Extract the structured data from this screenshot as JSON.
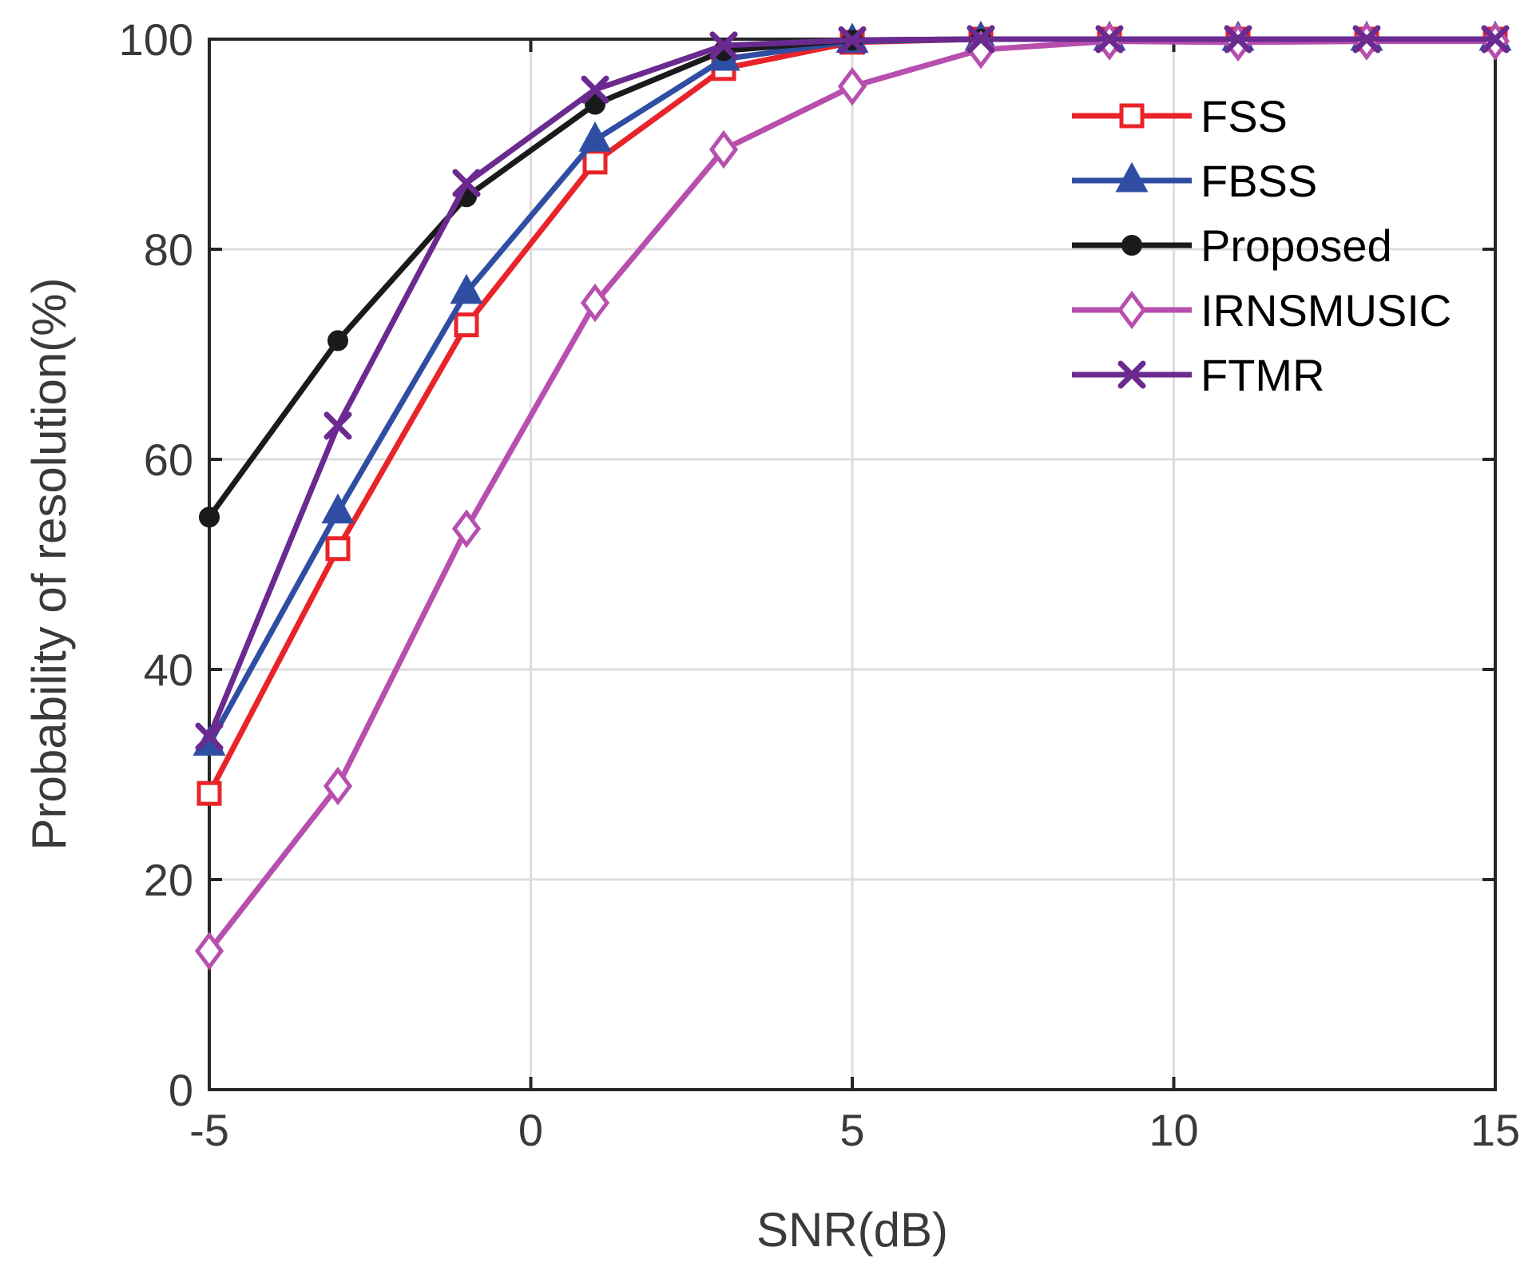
{
  "chart_data": {
    "type": "line",
    "title": "",
    "xlabel": "SNR(dB)",
    "ylabel": "Probability of resolution(%)",
    "xlim": [
      -5,
      15
    ],
    "ylim": [
      0,
      100
    ],
    "xticks": [
      -5,
      0,
      5,
      10,
      15
    ],
    "yticks": [
      0,
      20,
      40,
      60,
      80,
      100
    ],
    "grid": true,
    "legend_position": "top-right",
    "x": [
      -5,
      -3,
      -1,
      1,
      3,
      5,
      7,
      9,
      11,
      13,
      15
    ],
    "series": [
      {
        "name": "FSS",
        "color": "#e8242a",
        "marker": "square",
        "values": [
          28.2,
          51.5,
          72.8,
          88.3,
          97.2,
          99.7,
          100,
          100,
          100,
          100,
          100
        ]
      },
      {
        "name": "FBSS",
        "color": "#2f4ea3",
        "marker": "triangle",
        "values": [
          32.9,
          55.0,
          75.9,
          90.4,
          98.1,
          99.8,
          100,
          100,
          100,
          100,
          100
        ]
      },
      {
        "name": "Proposed",
        "color": "#1a1a1a",
        "marker": "circle",
        "values": [
          54.5,
          71.3,
          85.0,
          93.8,
          98.9,
          99.9,
          100,
          100,
          100,
          100,
          100
        ]
      },
      {
        "name": "IRNSMUSIC",
        "color": "#b74fae",
        "marker": "diamond",
        "values": [
          13.2,
          28.9,
          53.4,
          74.9,
          89.5,
          95.5,
          99.0,
          99.8,
          99.7,
          99.8,
          99.8
        ]
      },
      {
        "name": "FTMR",
        "color": "#6b2a8f",
        "marker": "x",
        "values": [
          33.6,
          63.2,
          86.3,
          95.2,
          99.4,
          99.9,
          100,
          100,
          100,
          100,
          100
        ]
      }
    ]
  }
}
